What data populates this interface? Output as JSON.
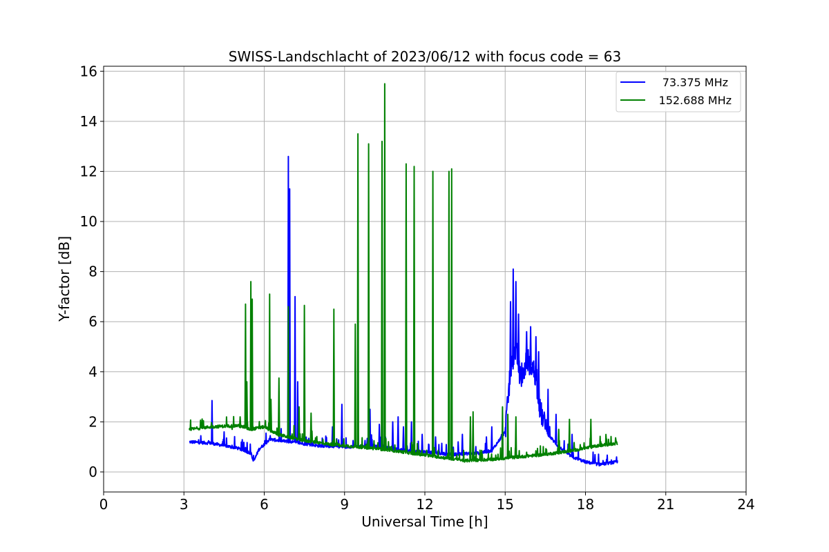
{
  "chart_data": {
    "type": "line",
    "title": "SWISS-Landschlacht of 2023/06/12 with focus code = 63",
    "xlabel": "Universal Time [h]",
    "ylabel": "Y-factor [dB]",
    "xlim": [
      0,
      24
    ],
    "ylim": [
      -0.8,
      16.2
    ],
    "xticks": [
      0,
      3,
      6,
      9,
      12,
      15,
      18,
      21,
      24
    ],
    "yticks": [
      0,
      2,
      4,
      6,
      8,
      10,
      12,
      14,
      16
    ],
    "xtick_labels": [
      "0",
      "3",
      "6",
      "9",
      "12",
      "15",
      "18",
      "21",
      "24"
    ],
    "ytick_labels": [
      "0",
      "2",
      "4",
      "6",
      "8",
      "10",
      "12",
      "14",
      "16"
    ],
    "grid": true,
    "legend_position": "top-right",
    "series": [
      {
        "name": "73.375 MHz",
        "color": "#0000ff",
        "baseline": [
          [
            3.2,
            1.2
          ],
          [
            4.0,
            1.15
          ],
          [
            5.0,
            0.95
          ],
          [
            5.5,
            0.75
          ],
          [
            5.6,
            0.4
          ],
          [
            5.8,
            0.9
          ],
          [
            6.2,
            1.3
          ],
          [
            7.0,
            1.2
          ],
          [
            8.0,
            1.05
          ],
          [
            9.0,
            1.0
          ],
          [
            10.0,
            1.05
          ],
          [
            11.0,
            0.9
          ],
          [
            12.0,
            0.8
          ],
          [
            13.0,
            0.7
          ],
          [
            14.0,
            0.75
          ],
          [
            14.5,
            0.85
          ],
          [
            15.0,
            1.6
          ],
          [
            15.2,
            4.0
          ],
          [
            15.4,
            5.0
          ],
          [
            15.6,
            3.5
          ],
          [
            15.8,
            4.5
          ],
          [
            16.1,
            4.0
          ],
          [
            16.3,
            2.5
          ],
          [
            16.6,
            1.5
          ],
          [
            17.0,
            1.0
          ],
          [
            17.5,
            0.6
          ],
          [
            18.0,
            0.4
          ],
          [
            18.5,
            0.3
          ],
          [
            19.2,
            0.4
          ]
        ],
        "spikes": [
          [
            4.05,
            2.85
          ],
          [
            4.5,
            1.6
          ],
          [
            6.9,
            12.6
          ],
          [
            6.95,
            11.3
          ],
          [
            7.15,
            7.0
          ],
          [
            7.25,
            3.6
          ],
          [
            8.55,
            1.8
          ],
          [
            8.9,
            2.7
          ],
          [
            9.5,
            2.1
          ],
          [
            9.95,
            2.5
          ],
          [
            10.3,
            1.9
          ],
          [
            10.8,
            2.0
          ],
          [
            11.0,
            2.2
          ],
          [
            11.2,
            1.8
          ],
          [
            11.5,
            2.0
          ],
          [
            11.9,
            1.5
          ],
          [
            12.4,
            1.4
          ],
          [
            13.4,
            1.5
          ],
          [
            14.3,
            1.4
          ],
          [
            14.5,
            1.8
          ],
          [
            15.2,
            6.8
          ],
          [
            15.3,
            8.1
          ],
          [
            15.4,
            7.6
          ],
          [
            15.5,
            6.3
          ],
          [
            15.8,
            5.6
          ],
          [
            15.95,
            5.8
          ],
          [
            16.15,
            5.4
          ],
          [
            16.25,
            4.8
          ],
          [
            16.6,
            3.3
          ],
          [
            16.9,
            2.3
          ],
          [
            17.5,
            1.5
          ]
        ]
      },
      {
        "name": "152.688 MHz",
        "color": "#008000",
        "baseline": [
          [
            3.2,
            1.7
          ],
          [
            4.0,
            1.8
          ],
          [
            5.0,
            1.85
          ],
          [
            5.5,
            1.7
          ],
          [
            6.0,
            1.8
          ],
          [
            6.5,
            1.5
          ],
          [
            7.5,
            1.25
          ],
          [
            8.5,
            1.1
          ],
          [
            9.5,
            1.0
          ],
          [
            10.5,
            0.9
          ],
          [
            11.5,
            0.75
          ],
          [
            12.5,
            0.6
          ],
          [
            13.5,
            0.45
          ],
          [
            14.5,
            0.5
          ],
          [
            15.5,
            0.6
          ],
          [
            16.5,
            0.7
          ],
          [
            17.5,
            0.85
          ],
          [
            18.5,
            1.05
          ],
          [
            19.2,
            1.15
          ]
        ],
        "spikes": [
          [
            4.8,
            1.7
          ],
          [
            5.1,
            2.2
          ],
          [
            5.3,
            6.7
          ],
          [
            5.35,
            3.6
          ],
          [
            5.5,
            7.6
          ],
          [
            5.55,
            6.9
          ],
          [
            6.2,
            7.1
          ],
          [
            6.25,
            2.9
          ],
          [
            6.55,
            3.75
          ],
          [
            6.9,
            6.6
          ],
          [
            7.3,
            2.6
          ],
          [
            7.5,
            6.65
          ],
          [
            7.75,
            2.35
          ],
          [
            8.6,
            6.5
          ],
          [
            9.4,
            5.9
          ],
          [
            9.5,
            13.5
          ],
          [
            9.9,
            13.1
          ],
          [
            10.4,
            13.2
          ],
          [
            10.5,
            15.5
          ],
          [
            11.3,
            12.3
          ],
          [
            11.6,
            12.2
          ],
          [
            12.3,
            12.0
          ],
          [
            12.9,
            12.0
          ],
          [
            13.0,
            12.1
          ],
          [
            13.7,
            2.2
          ],
          [
            13.8,
            2.4
          ],
          [
            14.9,
            2.6
          ],
          [
            15.1,
            2.3
          ],
          [
            15.4,
            2.2
          ],
          [
            17.0,
            1.7
          ],
          [
            17.4,
            2.1
          ],
          [
            18.2,
            2.1
          ]
        ]
      }
    ]
  }
}
